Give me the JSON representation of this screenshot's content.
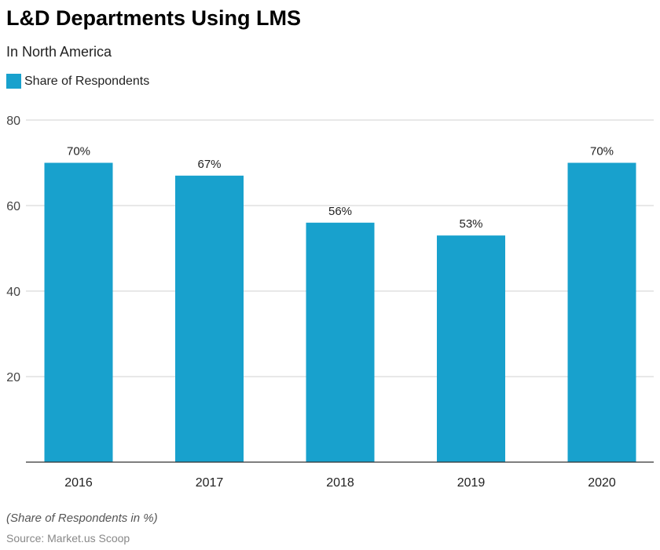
{
  "chart_data": {
    "type": "bar",
    "title": "L&D Departments Using LMS",
    "subtitle": "In North America",
    "categories": [
      "2016",
      "2017",
      "2018",
      "2019",
      "2020"
    ],
    "series": [
      {
        "name": "Share of Respondents",
        "values": [
          70,
          67,
          56,
          53,
          70
        ],
        "labels": [
          "70%",
          "67%",
          "56%",
          "53%",
          "70%"
        ],
        "color": "#18a1cd"
      }
    ],
    "ylim": [
      0,
      80
    ],
    "yticks": [
      20,
      40,
      60,
      80
    ],
    "grid": true,
    "legend": "top-left",
    "note": "(Share of Respondents in %)",
    "source": "Source: Market.us Scoop"
  }
}
